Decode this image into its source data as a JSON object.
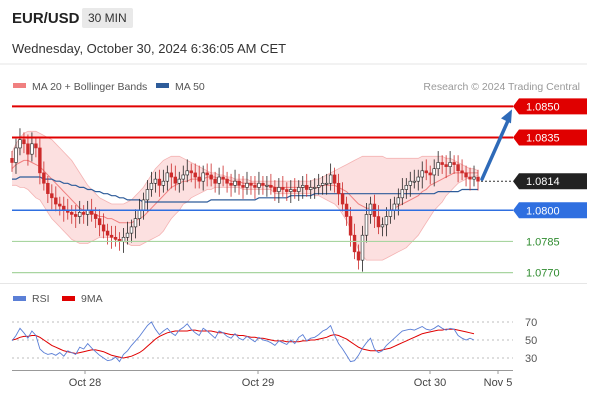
{
  "header": {
    "symbol": "EUR/USD",
    "interval": "30 MIN",
    "datetime": "Wednesday, October 30, 2024 6:36:05 AM CET"
  },
  "colors": {
    "bollinger": "#f08080",
    "ma50": "#2e5c9a",
    "resistance": "#e00000",
    "pivot": "#2f6fe0",
    "support": "#a8d5a0",
    "support_text": "#2e8b2e",
    "candle_up": "#222222",
    "candle_down": "#cc2a2a",
    "rsi": "#5b7fd6",
    "rsi_ma": "#e00000",
    "arrow": "#2e6ab8"
  },
  "chart_data": [
    {
      "type": "candlestick",
      "legend": [
        {
          "name": "MA 20 + Bollinger Bands",
          "color": "#f08080"
        },
        {
          "name": "MA 50",
          "color": "#2e5c9a"
        }
      ],
      "legend_placement": "top-left",
      "watermark": "Research © 2024 Trading Central",
      "ylim": [
        1.0765,
        1.0855
      ],
      "x_ticks": [
        "Oct 28",
        "Oct 29",
        "Oct 30",
        "Nov 5"
      ],
      "current_price": "1.0814",
      "levels": [
        {
          "label": "1.0850",
          "value": 1.085,
          "kind": "resistance"
        },
        {
          "label": "1.0835",
          "value": 1.0835,
          "kind": "resistance"
        },
        {
          "label": "1.0800",
          "value": 1.08,
          "kind": "pivot"
        },
        {
          "label": "1.0785",
          "value": 1.0785,
          "kind": "support"
        },
        {
          "label": "1.0770",
          "value": 1.077,
          "kind": "support"
        }
      ],
      "close": [
        1.0823,
        1.083,
        1.0834,
        1.0832,
        1.0827,
        1.0832,
        1.083,
        1.0818,
        1.0813,
        1.0808,
        1.0806,
        1.0803,
        1.0802,
        1.08,
        1.0799,
        1.0798,
        1.0797,
        1.0799,
        1.0798,
        1.08,
        1.0798,
        1.0796,
        1.0793,
        1.079,
        1.0788,
        1.0787,
        1.0786,
        1.0785,
        1.0787,
        1.0789,
        1.0792,
        1.0796,
        1.08,
        1.0805,
        1.081,
        1.0813,
        1.0815,
        1.0812,
        1.0814,
        1.0818,
        1.0816,
        1.0813,
        1.0815,
        1.0817,
        1.0819,
        1.0818,
        1.0816,
        1.0814,
        1.0818,
        1.0817,
        1.0815,
        1.0813,
        1.0816,
        1.0815,
        1.0813,
        1.0812,
        1.0814,
        1.0812,
        1.0811,
        1.0813,
        1.0812,
        1.0811,
        1.0813,
        1.0812,
        1.0812,
        1.0811,
        1.0809,
        1.0811,
        1.081,
        1.0809,
        1.081,
        1.0809,
        1.0811,
        1.0812,
        1.081,
        1.0811,
        1.0811,
        1.0812,
        1.0813,
        1.0813,
        1.0817,
        1.0813,
        1.0808,
        1.0803,
        1.0797,
        1.0788,
        1.078,
        1.0776,
        1.0788,
        1.0798,
        1.0803,
        1.0797,
        1.0792,
        1.0793,
        1.0797,
        1.08,
        1.0803,
        1.0806,
        1.081,
        1.0812,
        1.0814,
        1.0814,
        1.0816,
        1.0819,
        1.0818,
        1.0817,
        1.082,
        1.0823,
        1.0822,
        1.0821,
        1.0823,
        1.0822,
        1.0819,
        1.0818,
        1.0816,
        1.0815,
        1.0816,
        1.0814
      ],
      "ma20": [
        1.082,
        1.0822,
        1.0823,
        1.0824,
        1.0824,
        1.0823,
        1.0822,
        1.0821,
        1.0819,
        1.0817,
        1.0815,
        1.0813,
        1.0811,
        1.0809,
        1.0807,
        1.0805,
        1.0803,
        1.0801,
        1.08,
        1.0799,
        1.0799,
        1.0798,
        1.0797,
        1.0797,
        1.0796,
        1.0796,
        1.0795,
        1.0794,
        1.0794,
        1.0794,
        1.0794,
        1.0795,
        1.0796,
        1.0797,
        1.0799,
        1.0801,
        1.0803,
        1.0805,
        1.0807,
        1.0809,
        1.0811,
        1.0812,
        1.0813,
        1.0814,
        1.0814,
        1.0815,
        1.0815,
        1.0815,
        1.0815,
        1.0816,
        1.0816,
        1.0816,
        1.0815,
        1.0815,
        1.0815,
        1.0814,
        1.0814,
        1.0814,
        1.0813,
        1.0813,
        1.0813,
        1.0813,
        1.0812,
        1.0812,
        1.0812,
        1.0812,
        1.0811,
        1.0811,
        1.0811,
        1.0811,
        1.0811,
        1.0811,
        1.0811,
        1.0811,
        1.0811,
        1.0811,
        1.0811,
        1.0811,
        1.0812,
        1.0812,
        1.0812,
        1.0812,
        1.0811,
        1.081,
        1.0809,
        1.0807,
        1.0805,
        1.0803,
        1.0802,
        1.0801,
        1.0801,
        1.08,
        1.08,
        1.08,
        1.08,
        1.08,
        1.0801,
        1.0802,
        1.0803,
        1.0804,
        1.0805,
        1.0806,
        1.0807,
        1.0809,
        1.081,
        1.0812,
        1.0813,
        1.0814,
        1.0815,
        1.0816,
        1.0817,
        1.0818,
        1.0818,
        1.0818,
        1.0818,
        1.0818,
        1.0818,
        1.0818
      ],
      "bb_upper": [
        1.0828,
        1.0832,
        1.0835,
        1.0837,
        1.0838,
        1.0838,
        1.0838,
        1.0837,
        1.0836,
        1.0835,
        1.0834,
        1.0832,
        1.083,
        1.0828,
        1.0826,
        1.0824,
        1.0821,
        1.0818,
        1.0815,
        1.0812,
        1.081,
        1.0808,
        1.0806,
        1.0805,
        1.0804,
        1.0803,
        1.0803,
        1.0803,
        1.0803,
        1.0804,
        1.0805,
        1.0807,
        1.0809,
        1.0811,
        1.0814,
        1.0817,
        1.082,
        1.0822,
        1.0824,
        1.0825,
        1.0826,
        1.0826,
        1.0826,
        1.0825,
        1.0824,
        1.0823,
        1.0822,
        1.0821,
        1.082,
        1.0819,
        1.0818,
        1.0818,
        1.0817,
        1.0817,
        1.0816,
        1.0816,
        1.0815,
        1.0815,
        1.0815,
        1.0815,
        1.0814,
        1.0814,
        1.0814,
        1.0814,
        1.0814,
        1.0814,
        1.0814,
        1.0814,
        1.0814,
        1.0814,
        1.0814,
        1.0814,
        1.0814,
        1.0814,
        1.0814,
        1.0814,
        1.0815,
        1.0815,
        1.0816,
        1.0817,
        1.0818,
        1.0819,
        1.082,
        1.0821,
        1.0822,
        1.0823,
        1.0824,
        1.0825,
        1.0826,
        1.0826,
        1.0826,
        1.0826,
        1.0826,
        1.0826,
        1.0825,
        1.0825,
        1.0825,
        1.0825,
        1.0825,
        1.0825,
        1.0825,
        1.0825,
        1.0825,
        1.0826,
        1.0826,
        1.0826,
        1.0826,
        1.0826,
        1.0826,
        1.0825,
        1.0825,
        1.0824,
        1.0823,
        1.0822,
        1.0821,
        1.082,
        1.082,
        1.0819
      ],
      "bb_lower": [
        1.0812,
        1.0812,
        1.0811,
        1.0811,
        1.081,
        1.0808,
        1.0806,
        1.0805,
        1.0802,
        1.0799,
        1.0796,
        1.0794,
        1.0792,
        1.079,
        1.0788,
        1.0786,
        1.0785,
        1.0784,
        1.0784,
        1.0784,
        1.0785,
        1.0786,
        1.0787,
        1.0787,
        1.0787,
        1.0787,
        1.0786,
        1.0785,
        1.0785,
        1.0784,
        1.0783,
        1.0783,
        1.0783,
        1.0784,
        1.0785,
        1.0786,
        1.0787,
        1.0788,
        1.079,
        1.0793,
        1.0796,
        1.0798,
        1.08,
        1.0803,
        1.0804,
        1.0806,
        1.0807,
        1.0808,
        1.0809,
        1.081,
        1.081,
        1.0811,
        1.0811,
        1.0811,
        1.0811,
        1.0811,
        1.0811,
        1.0811,
        1.081,
        1.081,
        1.081,
        1.081,
        1.081,
        1.081,
        1.081,
        1.081,
        1.0808,
        1.0808,
        1.0808,
        1.0808,
        1.0808,
        1.0808,
        1.0808,
        1.0808,
        1.0808,
        1.0808,
        1.0807,
        1.0807,
        1.0806,
        1.0805,
        1.0804,
        1.0803,
        1.0801,
        1.0798,
        1.0795,
        1.0791,
        1.0786,
        1.0781,
        1.0778,
        1.0776,
        1.0776,
        1.0776,
        1.0776,
        1.0776,
        1.0777,
        1.0778,
        1.0779,
        1.078,
        1.0781,
        1.0782,
        1.0784,
        1.0786,
        1.0788,
        1.0791,
        1.0794,
        1.0797,
        1.08,
        1.0802,
        1.0804,
        1.0807,
        1.0809,
        1.0811,
        1.0813,
        1.0814,
        1.0815,
        1.0816,
        1.0816,
        1.0817
      ],
      "ma50": [
        1.0815,
        1.0815,
        1.0816,
        1.0816,
        1.0816,
        1.0816,
        1.0816,
        1.0816,
        1.0815,
        1.0815,
        1.0815,
        1.0814,
        1.0814,
        1.0813,
        1.0813,
        1.0812,
        1.0812,
        1.0811,
        1.0811,
        1.081,
        1.081,
        1.0809,
        1.0809,
        1.0808,
        1.0808,
        1.0807,
        1.0807,
        1.0806,
        1.0806,
        1.0805,
        1.0805,
        1.0805,
        1.0805,
        1.0804,
        1.0804,
        1.0804,
        1.0804,
        1.0804,
        1.0804,
        1.0804,
        1.0804,
        1.0804,
        1.0804,
        1.0804,
        1.0804,
        1.0804,
        1.0804,
        1.0804,
        1.0804,
        1.0804,
        1.0805,
        1.0805,
        1.0805,
        1.0805,
        1.0805,
        1.0805,
        1.0805,
        1.0805,
        1.0805,
        1.0805,
        1.0805,
        1.0805,
        1.0806,
        1.0806,
        1.0806,
        1.0806,
        1.0806,
        1.0806,
        1.0806,
        1.0806,
        1.0807,
        1.0807,
        1.0807,
        1.0807,
        1.0807,
        1.0807,
        1.0808,
        1.0808,
        1.0808,
        1.0808,
        1.0808,
        1.0808,
        1.0808,
        1.0808,
        1.0808,
        1.0808,
        1.0808,
        1.0808,
        1.0808,
        1.0808,
        1.0808,
        1.0808,
        1.0808,
        1.0808,
        1.0808,
        1.0808,
        1.0808,
        1.0808,
        1.0808,
        1.0808,
        1.0808,
        1.0808,
        1.0808,
        1.0808,
        1.0808,
        1.0808,
        1.0808,
        1.0809,
        1.0809,
        1.0809,
        1.0809,
        1.0809,
        1.0809,
        1.081,
        1.081,
        1.081,
        1.081,
        1.081
      ]
    },
    {
      "type": "line",
      "legend": [
        {
          "name": "RSI",
          "color": "#5b7fd6"
        },
        {
          "name": "9MA",
          "color": "#e00000"
        }
      ],
      "ylim": [
        20,
        80
      ],
      "y_ticks": [
        "70",
        "50",
        "30"
      ],
      "rsi": [
        49,
        55,
        63,
        58,
        52,
        60,
        55,
        40,
        36,
        34,
        35,
        33,
        36,
        32,
        38,
        36,
        34,
        42,
        40,
        46,
        41,
        37,
        33,
        30,
        27,
        28,
        31,
        26,
        34,
        38,
        44,
        49,
        54,
        60,
        66,
        70,
        62,
        56,
        60,
        63,
        58,
        55,
        61,
        64,
        68,
        62,
        58,
        55,
        63,
        60,
        56,
        52,
        60,
        58,
        54,
        52,
        57,
        52,
        50,
        54,
        51,
        48,
        53,
        50,
        49,
        47,
        44,
        49,
        47,
        45,
        50,
        46,
        53,
        56,
        49,
        52,
        53,
        56,
        60,
        62,
        66,
        55,
        46,
        40,
        33,
        26,
        27,
        33,
        41,
        47,
        52,
        40,
        36,
        38,
        44,
        48,
        52,
        56,
        60,
        61,
        62,
        61,
        63,
        65,
        62,
        61,
        63,
        66,
        63,
        61,
        63,
        62,
        55,
        52,
        50,
        52,
        50
      ],
      "rsi_ma": [
        50,
        51,
        53,
        54,
        54,
        55,
        55,
        53,
        50,
        47,
        44,
        42,
        40,
        38,
        37,
        36,
        35,
        36,
        37,
        38,
        39,
        39,
        38,
        37,
        35,
        33,
        32,
        31,
        30,
        31,
        32,
        34,
        36,
        39,
        43,
        47,
        51,
        54,
        56,
        58,
        59,
        60,
        60,
        60,
        60,
        61,
        61,
        60,
        60,
        60,
        60,
        59,
        58,
        58,
        57,
        56,
        56,
        55,
        55,
        54,
        53,
        53,
        52,
        52,
        51,
        50,
        49,
        49,
        49,
        48,
        48,
        48,
        48,
        49,
        49,
        50,
        50,
        51,
        52,
        53,
        55,
        56,
        55,
        53,
        51,
        48,
        45,
        42,
        40,
        39,
        38,
        38,
        38,
        39,
        40,
        41,
        43,
        45,
        47,
        49,
        51,
        53,
        55,
        57,
        58,
        59,
        60,
        61,
        61,
        62,
        62,
        62,
        61,
        60,
        59,
        58,
        57
      ]
    }
  ]
}
